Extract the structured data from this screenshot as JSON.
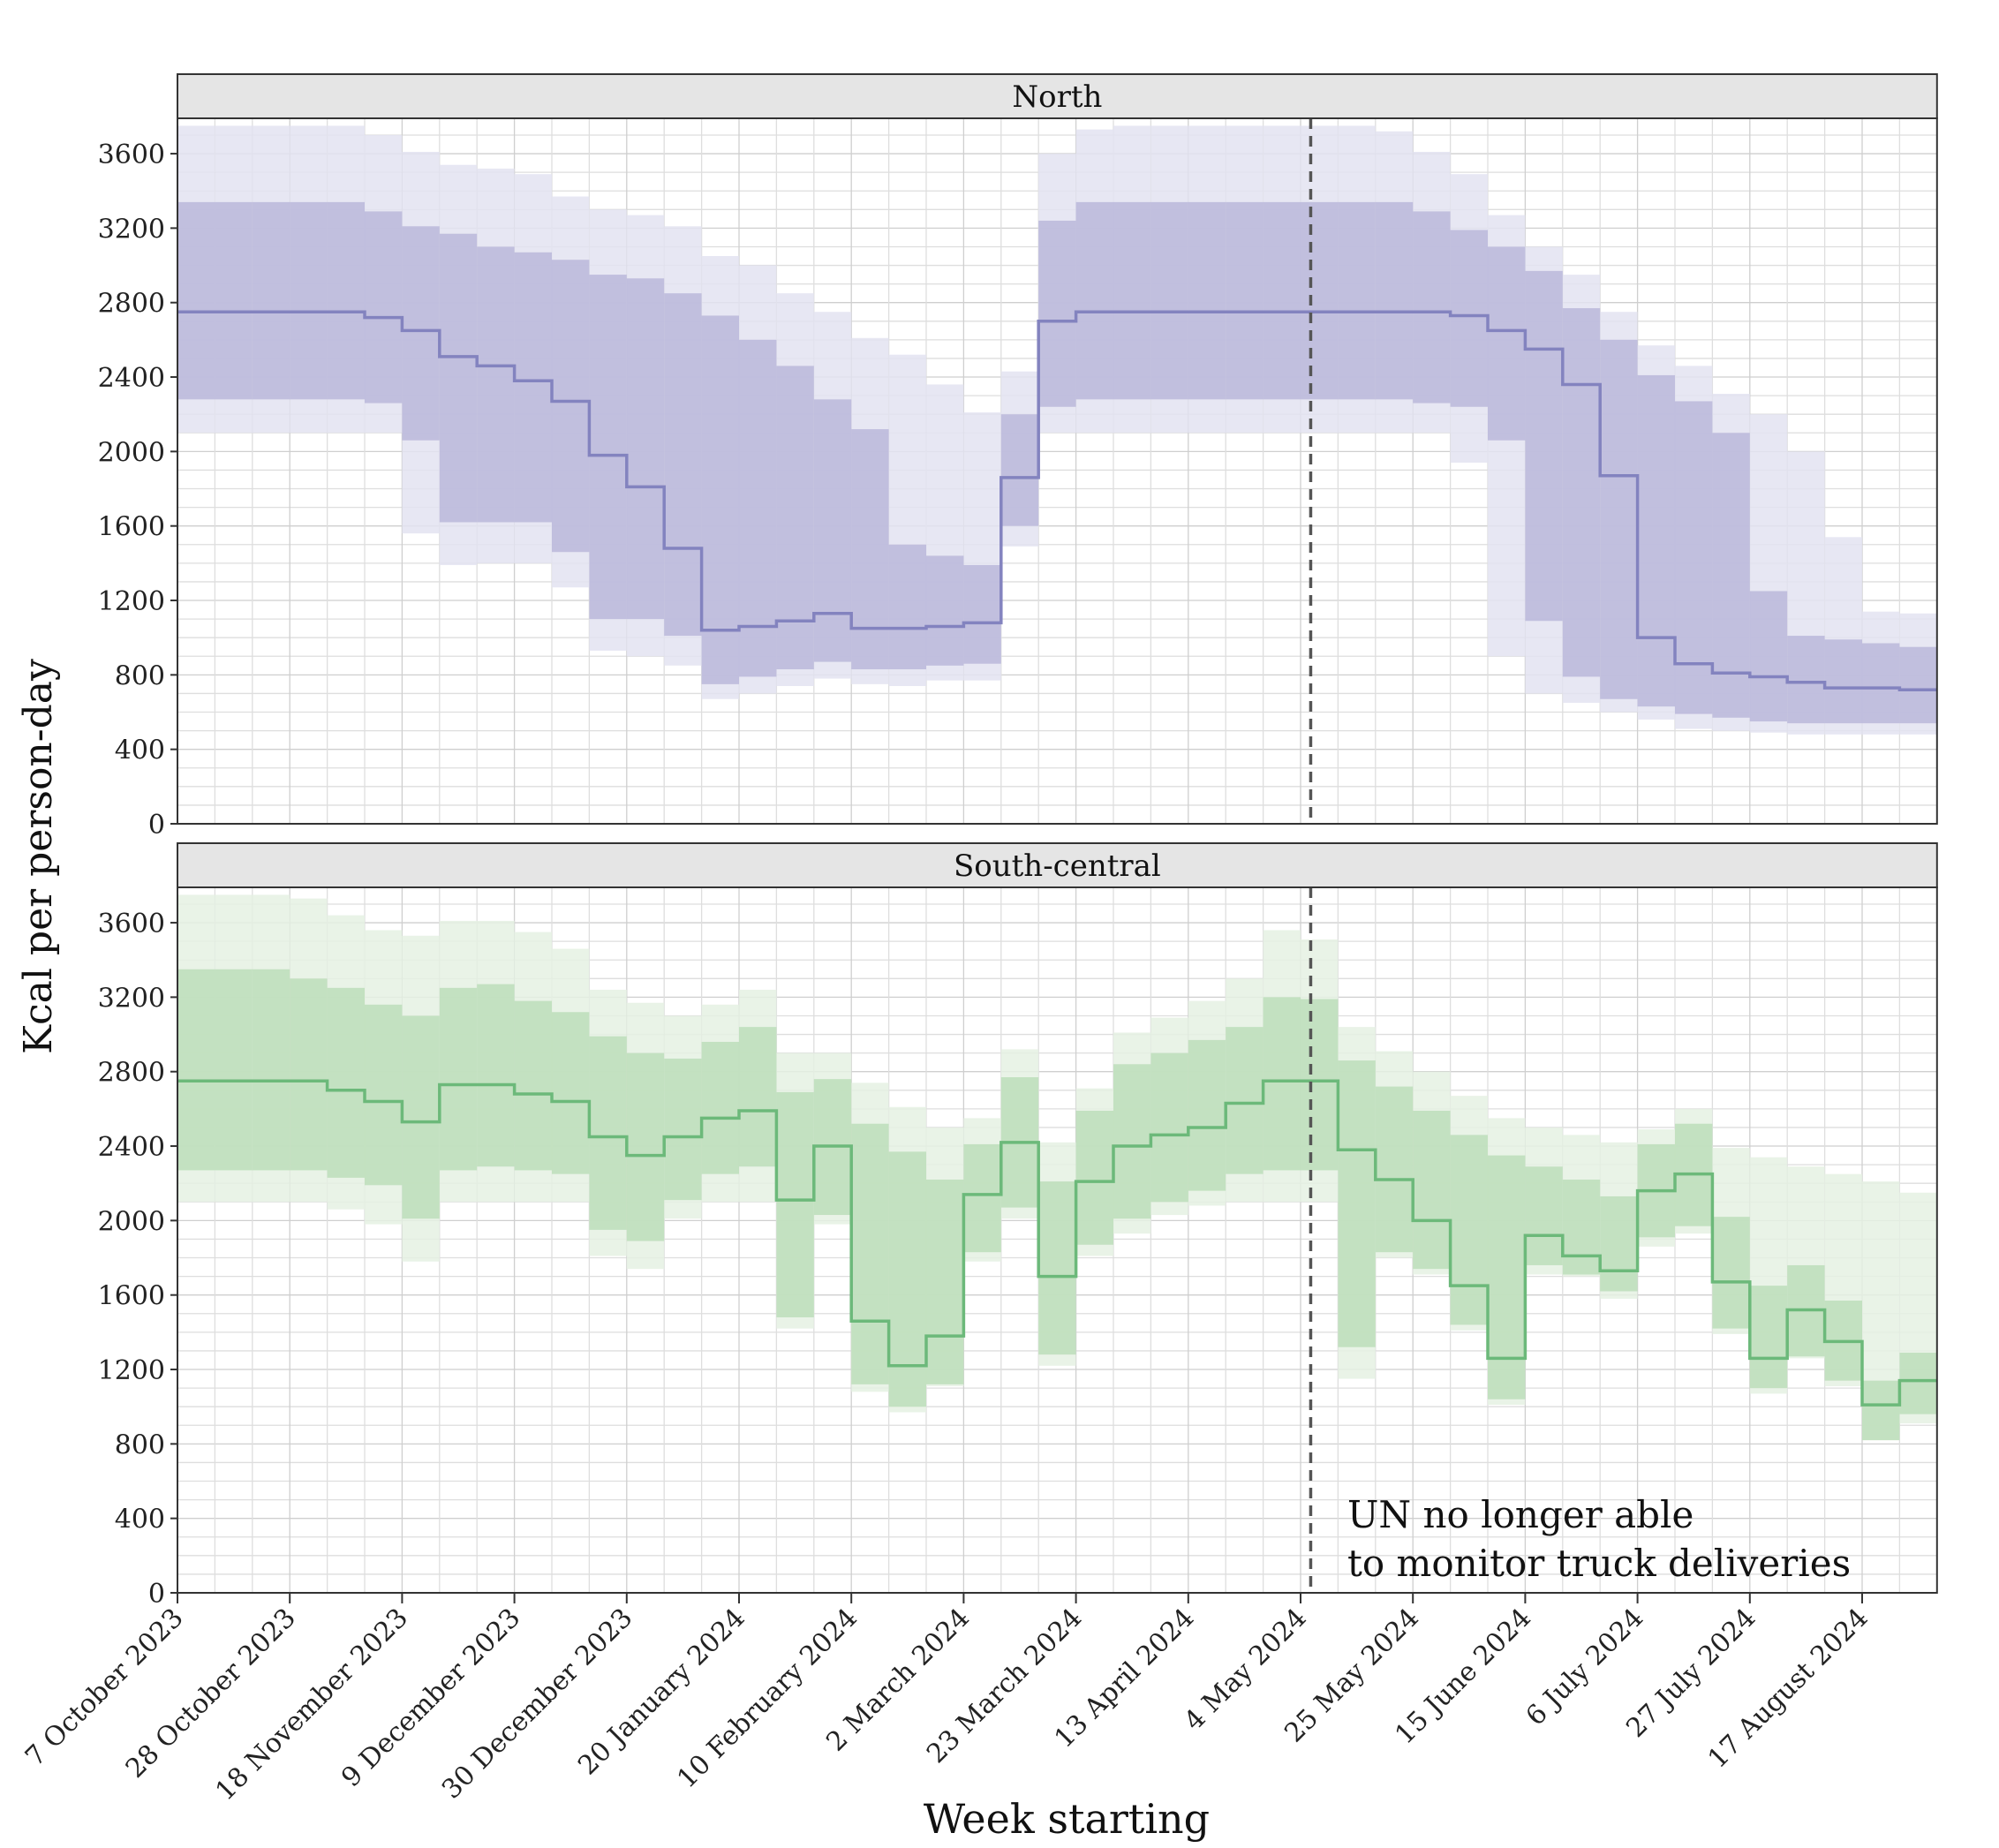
{
  "chart_data": [
    {
      "type": "area",
      "title": "North",
      "xlabel": "Week starting",
      "ylabel": "Kcal per person-day",
      "ylim": [
        0,
        3790
      ],
      "yticks": [
        0,
        400,
        800,
        1200,
        1600,
        2000,
        2400,
        2800,
        3200,
        3600
      ],
      "x_unit": "week index from 7 October 2023",
      "colors": {
        "outer": "#e3e3f1",
        "inner": "#bdbadb",
        "median": "#8383bf"
      },
      "median": [
        2750,
        2750,
        2750,
        2750,
        2750,
        2720,
        2650,
        2510,
        2460,
        2380,
        2270,
        1980,
        1810,
        1480,
        1040,
        1060,
        1090,
        1130,
        1050,
        1050,
        1060,
        1080,
        1860,
        2700,
        2750,
        2750,
        2750,
        2750,
        2750,
        2750,
        2750,
        2750,
        2750,
        2750,
        2730,
        2650,
        2550,
        2360,
        1870,
        1000,
        860,
        810,
        790,
        760,
        730,
        730,
        720
      ],
      "inner_low": [
        2280,
        2280,
        2280,
        2280,
        2280,
        2260,
        2060,
        1620,
        1620,
        1620,
        1460,
        1100,
        1100,
        1010,
        750,
        790,
        830,
        870,
        830,
        830,
        850,
        860,
        1600,
        2240,
        2280,
        2280,
        2280,
        2280,
        2280,
        2280,
        2280,
        2280,
        2280,
        2260,
        2240,
        2060,
        1090,
        790,
        670,
        630,
        590,
        570,
        550,
        540,
        540,
        540,
        540
      ],
      "inner_high": [
        3340,
        3340,
        3340,
        3340,
        3340,
        3290,
        3210,
        3170,
        3100,
        3070,
        3030,
        2950,
        2930,
        2850,
        2730,
        2600,
        2460,
        2280,
        2120,
        1500,
        1440,
        1390,
        2200,
        3240,
        3340,
        3340,
        3340,
        3340,
        3340,
        3340,
        3340,
        3340,
        3340,
        3290,
        3190,
        3100,
        2970,
        2770,
        2600,
        2410,
        2270,
        2100,
        1250,
        1010,
        990,
        970,
        950
      ],
      "outer_low": [
        2100,
        2100,
        2100,
        2100,
        2100,
        2100,
        1560,
        1390,
        1400,
        1400,
        1270,
        930,
        900,
        850,
        670,
        700,
        740,
        780,
        750,
        740,
        770,
        770,
        1490,
        2100,
        2100,
        2100,
        2100,
        2100,
        2100,
        2100,
        2100,
        2100,
        2100,
        2100,
        1940,
        900,
        700,
        650,
        600,
        560,
        510,
        500,
        490,
        480,
        480,
        480,
        480
      ],
      "outer_high": [
        3750,
        3750,
        3750,
        3750,
        3750,
        3700,
        3610,
        3540,
        3520,
        3490,
        3370,
        3300,
        3270,
        3210,
        3050,
        3000,
        2850,
        2750,
        2610,
        2520,
        2360,
        2210,
        2430,
        3600,
        3730,
        3750,
        3750,
        3750,
        3750,
        3750,
        3750,
        3750,
        3720,
        3610,
        3490,
        3270,
        3100,
        2950,
        2750,
        2570,
        2460,
        2310,
        2200,
        2000,
        1540,
        1140,
        1130
      ]
    },
    {
      "type": "area",
      "title": "South-central",
      "xlabel": "Week starting",
      "ylabel": "Kcal per person-day",
      "ylim": [
        0,
        3790
      ],
      "yticks": [
        0,
        400,
        800,
        1200,
        1600,
        2000,
        2400,
        2800,
        3200,
        3600
      ],
      "x_unit": "week index from 7 October 2023",
      "colors": {
        "outer": "#e5f1e3",
        "inner": "#bfdfbd",
        "median": "#6cb97a"
      },
      "median": [
        2750,
        2750,
        2750,
        2750,
        2700,
        2640,
        2530,
        2730,
        2730,
        2680,
        2640,
        2450,
        2350,
        2450,
        2550,
        2590,
        2110,
        2400,
        1460,
        1220,
        1380,
        2140,
        2420,
        1700,
        2210,
        2400,
        2460,
        2500,
        2630,
        2750,
        2750,
        2380,
        2220,
        2000,
        1650,
        1260,
        1920,
        1810,
        1730,
        2160,
        2250,
        1670,
        1260,
        1520,
        1350,
        1010,
        1140
      ],
      "inner_low": [
        2270,
        2270,
        2270,
        2270,
        2230,
        2190,
        2010,
        2270,
        2290,
        2270,
        2250,
        1950,
        1890,
        2110,
        2250,
        2290,
        1480,
        2030,
        1120,
        1000,
        1120,
        1830,
        2070,
        1280,
        1870,
        2010,
        2100,
        2160,
        2250,
        2270,
        2270,
        1320,
        1830,
        1740,
        1440,
        1040,
        1760,
        1710,
        1620,
        1910,
        1970,
        1420,
        1100,
        1270,
        1140,
        820,
        960
      ],
      "inner_high": [
        3350,
        3350,
        3350,
        3300,
        3250,
        3160,
        3100,
        3250,
        3270,
        3180,
        3120,
        2990,
        2900,
        2870,
        2960,
        3040,
        2690,
        2760,
        2520,
        2370,
        2220,
        2410,
        2770,
        2210,
        2590,
        2840,
        2900,
        2970,
        3040,
        3200,
        3190,
        2860,
        2720,
        2590,
        2460,
        2350,
        2290,
        2220,
        2130,
        2410,
        2520,
        2020,
        1650,
        1760,
        1570,
        1140,
        1290
      ],
      "outer_low": [
        2100,
        2100,
        2100,
        2100,
        2060,
        1980,
        1780,
        2100,
        2100,
        2100,
        2100,
        1810,
        1740,
        2010,
        2100,
        2100,
        1420,
        1980,
        1080,
        970,
        1110,
        1780,
        2010,
        1220,
        1810,
        1930,
        2030,
        2080,
        2100,
        2100,
        2100,
        1150,
        1800,
        1710,
        1410,
        1010,
        1710,
        1700,
        1580,
        1860,
        1930,
        1390,
        1070,
        1260,
        1110,
        820,
        910
      ],
      "outer_high": [
        3750,
        3750,
        3750,
        3730,
        3640,
        3560,
        3530,
        3610,
        3610,
        3550,
        3460,
        3240,
        3170,
        3100,
        3160,
        3240,
        2900,
        2900,
        2740,
        2610,
        2500,
        2550,
        2920,
        2420,
        2710,
        3010,
        3090,
        3180,
        3300,
        3560,
        3510,
        3040,
        2910,
        2800,
        2670,
        2550,
        2500,
        2460,
        2420,
        2490,
        2600,
        2390,
        2340,
        2290,
        2250,
        2210,
        2150
      ]
    }
  ],
  "x_ticks": [
    {
      "week": 0,
      "label": "7 October 2023"
    },
    {
      "week": 3,
      "label": "28 October 2023"
    },
    {
      "week": 6,
      "label": "18 November 2023"
    },
    {
      "week": 9,
      "label": "9 December 2023"
    },
    {
      "week": 12,
      "label": "30 December 2023"
    },
    {
      "week": 15,
      "label": "20 January 2024"
    },
    {
      "week": 18,
      "label": "10 February 2024"
    },
    {
      "week": 21,
      "label": "2 March 2024"
    },
    {
      "week": 24,
      "label": "23 March 2024"
    },
    {
      "week": 27,
      "label": "13 April 2024"
    },
    {
      "week": 30,
      "label": "4 May 2024"
    },
    {
      "week": 33,
      "label": "25 May 2024"
    },
    {
      "week": 36,
      "label": "15 June 2024"
    },
    {
      "week": 39,
      "label": "6 July 2024"
    },
    {
      "week": 42,
      "label": "27 July 2024"
    },
    {
      "week": 45,
      "label": "17 August 2024"
    }
  ],
  "event_line": {
    "week": 30.27,
    "annotation_line1": "UN no longer able",
    "annotation_line2": "to monitor truck deliveries"
  },
  "axis": {
    "xlabel": "Week starting",
    "ylabel": "Kcal per person-day"
  }
}
